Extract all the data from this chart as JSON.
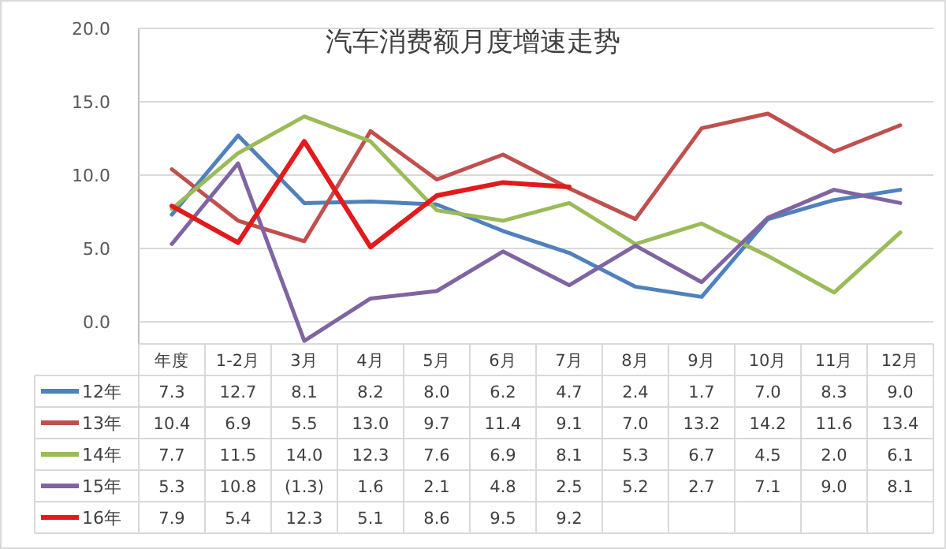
{
  "chart_data": {
    "type": "line",
    "title": "汽车消费额月度增速走势",
    "categories": [
      "年度",
      "1-2月",
      "3月",
      "4月",
      "5月",
      "6月",
      "7月",
      "8月",
      "9月",
      "10月",
      "11月",
      "12月"
    ],
    "ylim": [
      -1.5,
      20
    ],
    "yticks": [
      {
        "value": 0,
        "label": "0.0"
      },
      {
        "value": 5,
        "label": "5.0"
      },
      {
        "value": 10,
        "label": "10.0"
      },
      {
        "value": 15,
        "label": "15.0"
      },
      {
        "value": 20,
        "label": "20.0"
      }
    ],
    "grid": "y",
    "legend": "bottom",
    "line_style": "solid",
    "marker": "none",
    "series": [
      {
        "name": "12年",
        "color": "#4f81bd",
        "values": [
          7.3,
          12.7,
          8.1,
          8.2,
          8.0,
          6.2,
          4.7,
          2.4,
          1.7,
          7.0,
          8.3,
          9.0
        ],
        "value_labels": [
          "7.3",
          "12.7",
          "8.1",
          "8.2",
          "8.0",
          "6.2",
          "4.7",
          "2.4",
          "1.7",
          "7.0",
          "8.3",
          "9.0"
        ]
      },
      {
        "name": "13年",
        "color": "#c0504d",
        "values": [
          10.4,
          6.9,
          5.5,
          13.0,
          9.7,
          11.4,
          9.1,
          7.0,
          13.2,
          14.2,
          11.6,
          13.4
        ],
        "value_labels": [
          "10.4",
          "6.9",
          "5.5",
          "13.0",
          "9.7",
          "11.4",
          "9.1",
          "7.0",
          "13.2",
          "14.2",
          "11.6",
          "13.4"
        ]
      },
      {
        "name": "14年",
        "color": "#9bbb59",
        "values": [
          7.7,
          11.5,
          14.0,
          12.3,
          7.6,
          6.9,
          8.1,
          5.3,
          6.7,
          4.5,
          2.0,
          6.1
        ],
        "value_labels": [
          "7.7",
          "11.5",
          "14.0",
          "12.3",
          "7.6",
          "6.9",
          "8.1",
          "5.3",
          "6.7",
          "4.5",
          "2.0",
          "6.1"
        ]
      },
      {
        "name": "15年",
        "color": "#8064a2",
        "values": [
          5.3,
          10.8,
          -1.3,
          1.6,
          2.1,
          4.8,
          2.5,
          5.2,
          2.7,
          7.1,
          9.0,
          8.1
        ],
        "value_labels": [
          "5.3",
          "10.8",
          "(1.3)",
          "1.6",
          "2.1",
          "4.8",
          "2.5",
          "5.2",
          "2.7",
          "7.1",
          "9.0",
          "8.1"
        ]
      },
      {
        "name": "16年",
        "color": "#e31a1c",
        "values": [
          7.9,
          5.4,
          12.3,
          5.1,
          8.6,
          9.5,
          9.2,
          null,
          null,
          null,
          null,
          null
        ],
        "value_labels": [
          "7.9",
          "5.4",
          "12.3",
          "5.1",
          "8.6",
          "9.5",
          "9.2",
          null,
          null,
          null,
          null,
          null
        ]
      }
    ]
  }
}
